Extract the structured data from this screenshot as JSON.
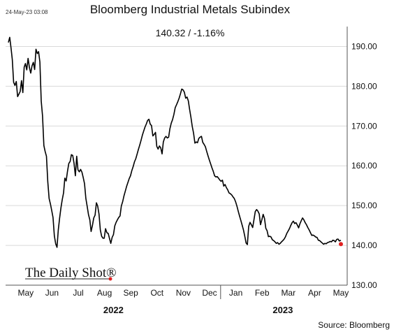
{
  "timestamp": "24-May-23 03:08",
  "chart_data": {
    "type": "line",
    "title": "Bloomberg Industrial Metals Subindex",
    "subtitle": "140.32  /  -1.16%",
    "source": "Source: Bloomberg",
    "watermark": "The Daily Shot®",
    "ylim": [
      130,
      195
    ],
    "yticks": [
      "130.00",
      "140.00",
      "150.00",
      "160.00",
      "170.00",
      "180.00",
      "190.00"
    ],
    "ytick_values": [
      130,
      140,
      150,
      160,
      170,
      180,
      190
    ],
    "months": [
      "May",
      "Jun",
      "Jul",
      "Aug",
      "Sep",
      "Oct",
      "Nov",
      "Dec",
      "Jan",
      "Feb",
      "Mar",
      "Apr",
      "May"
    ],
    "years": [
      {
        "label": "2022",
        "month_start": 0,
        "month_end": 8
      },
      {
        "label": "2023",
        "month_start": 8,
        "month_end": 13
      }
    ],
    "last_point_color": "#e02020",
    "line_color": "#000000",
    "grid": true,
    "x_months_elapsed": [
      0.0,
      0.05,
      0.1,
      0.15,
      0.2,
      0.25,
      0.3,
      0.35,
      0.4,
      0.45,
      0.5,
      0.55,
      0.6,
      0.65,
      0.7,
      0.75,
      0.8,
      0.85,
      0.9,
      0.95,
      1.0,
      1.05,
      1.1,
      1.15,
      1.2,
      1.25,
      1.3,
      1.35,
      1.4,
      1.45,
      1.5,
      1.55,
      1.6,
      1.65,
      1.7,
      1.75,
      1.8,
      1.85,
      1.9,
      1.95,
      2.0,
      2.05,
      2.1,
      2.15,
      2.2,
      2.25,
      2.3,
      2.35,
      2.4,
      2.45,
      2.5,
      2.55,
      2.6,
      2.65,
      2.7,
      2.75,
      2.8,
      2.85,
      2.9,
      2.95,
      3.0,
      3.05,
      3.1,
      3.15,
      3.2,
      3.25,
      3.3,
      3.35,
      3.4,
      3.45,
      3.5,
      3.55,
      3.6,
      3.65,
      3.7,
      3.75,
      3.8,
      3.85,
      3.9,
      3.95,
      4.0,
      4.05,
      4.1,
      4.15,
      4.2,
      4.25,
      4.3,
      4.35,
      4.4,
      4.45,
      4.5,
      4.55,
      4.6,
      4.65,
      4.7,
      4.75,
      4.8,
      4.85,
      4.9,
      4.95,
      5.0,
      5.05,
      5.1,
      5.15,
      5.2,
      5.25,
      5.3,
      5.35,
      5.4,
      5.45,
      5.5,
      5.55,
      5.6,
      5.65,
      5.7,
      5.75,
      5.8,
      5.85,
      5.9,
      5.95,
      6.0,
      6.05,
      6.1,
      6.15,
      6.2,
      6.25,
      6.3,
      6.35,
      6.4,
      6.45,
      6.5,
      6.55,
      6.6,
      6.65,
      6.7,
      6.75,
      6.8,
      6.85,
      6.9,
      6.95,
      7.0,
      7.05,
      7.1,
      7.15,
      7.2,
      7.25,
      7.3,
      7.35,
      7.4,
      7.45,
      7.5,
      7.55,
      7.6,
      7.65,
      7.7,
      7.75,
      7.8,
      7.85,
      7.9,
      7.95,
      8.0,
      8.05,
      8.1,
      8.15,
      8.2,
      8.25,
      8.3,
      8.35,
      8.4,
      8.45,
      8.5,
      8.55,
      8.6,
      8.65,
      8.7,
      8.75,
      8.8,
      8.85,
      8.9,
      8.95,
      9.0,
      9.05,
      9.1,
      9.15,
      9.2,
      9.25,
      9.3,
      9.35,
      9.4,
      9.45,
      9.5,
      9.55,
      9.6,
      9.65,
      9.7,
      9.75,
      9.8,
      9.85,
      9.9,
      9.95,
      10.0,
      10.05,
      10.1,
      10.15,
      10.2,
      10.25,
      10.3,
      10.35,
      10.4,
      10.45,
      10.5,
      10.55,
      10.6,
      10.65,
      10.7,
      10.75,
      10.8,
      10.85,
      10.9,
      10.95,
      11.0,
      11.05,
      11.1,
      11.15,
      11.2,
      11.25,
      11.3,
      11.35,
      11.4,
      11.45,
      11.5,
      11.55,
      11.6,
      11.65,
      11.7,
      11.75,
      11.8,
      11.85,
      11.9,
      11.95,
      12.0,
      12.05,
      12.1,
      12.15,
      12.2,
      12.25,
      12.3,
      12.35,
      12.4,
      12.45,
      12.5,
      12.55,
      12.6,
      12.66
    ],
    "values": [
      191.0,
      192.3,
      189.6,
      186.7,
      181.0,
      180.2,
      181.2,
      177.4,
      178.0,
      178.7,
      181.4,
      178.4,
      184.8,
      185.7,
      184.1,
      187.0,
      184.7,
      183.3,
      185.1,
      186.0,
      184.2,
      189.3,
      188.2,
      188.7,
      186.1,
      176.3,
      172.5,
      165.1,
      163.6,
      162.4,
      156.0,
      151.8,
      150.4,
      148.8,
      147.0,
      142.4,
      140.4,
      139.5,
      143.8,
      146.8,
      149.4,
      151.5,
      153.2,
      156.9,
      156.2,
      158.6,
      160.6,
      161.1,
      162.8,
      162.6,
      160.6,
      157.5,
      162.4,
      159.0,
      158.5,
      159.1,
      158.4,
      157.0,
      155.5,
      151.8,
      149.8,
      147.7,
      146.4,
      143.5,
      145.0,
      146.9,
      147.6,
      150.7,
      149.9,
      147.9,
      143.9,
      142.3,
      141.8,
      141.8,
      144.2,
      143.2,
      143.0,
      141.7,
      140.5,
      142.0,
      142.7,
      144.9,
      145.8,
      146.4,
      147.0,
      147.4,
      149.9,
      151.0,
      152.4,
      153.6,
      154.8,
      155.8,
      156.8,
      157.5,
      158.8,
      159.8,
      161.0,
      161.8,
      162.9,
      164.1,
      165.2,
      166.4,
      167.7,
      168.7,
      169.7,
      170.5,
      171.4,
      171.7,
      170.5,
      170.1,
      167.5,
      167.9,
      168.4,
      164.9,
      164.2,
      165.0,
      164.5,
      163.0,
      166.0,
      167.0,
      167.4,
      167.0,
      167.2,
      169.3,
      170.7,
      171.6,
      172.9,
      174.6,
      175.3,
      176.1,
      177.0,
      178.1,
      179.3,
      179.1,
      178.5,
      177.0,
      177.3,
      176.3,
      174.2,
      172.2,
      169.9,
      168.2,
      165.7,
      166.0,
      165.8,
      166.9,
      167.2,
      167.4,
      165.9,
      165.4,
      164.8,
      163.6,
      162.5,
      161.5,
      160.5,
      159.5,
      158.6,
      157.5,
      157.2,
      157.3,
      156.9,
      156.4,
      156.1,
      156.4,
      154.9,
      155.3,
      154.5,
      154.0,
      153.2,
      153.0,
      152.7,
      152.2,
      151.8,
      151.0,
      149.9,
      148.6,
      147.4,
      146.3,
      145.1,
      143.9,
      142.3,
      140.6,
      140.2,
      144.8,
      145.8,
      145.2,
      144.5,
      146.4,
      148.5,
      149.0,
      148.6,
      147.9,
      145.2,
      146.4,
      147.8,
      146.8,
      144.3,
      143.7,
      142.2,
      142.3,
      142.1,
      141.4,
      141.2,
      140.9,
      140.5,
      140.7,
      140.3,
      140.5,
      140.9,
      141.2,
      141.6,
      142.2,
      143.0,
      143.6,
      144.2,
      145.0,
      145.7,
      146.1,
      145.5,
      145.7,
      145.1,
      144.4,
      145.4,
      146.2,
      146.9,
      146.4,
      145.7,
      145.2,
      144.5,
      143.9,
      143.2,
      142.5,
      142.6,
      142.4,
      142.1,
      142.0,
      141.3,
      141.2,
      140.9,
      140.6,
      140.3,
      140.5,
      140.4,
      140.7,
      140.8,
      141.0,
      140.9,
      141.3,
      141.2,
      140.9,
      141.5,
      141.6,
      141.1,
      141.3,
      141.0,
      140.32
    ]
  }
}
